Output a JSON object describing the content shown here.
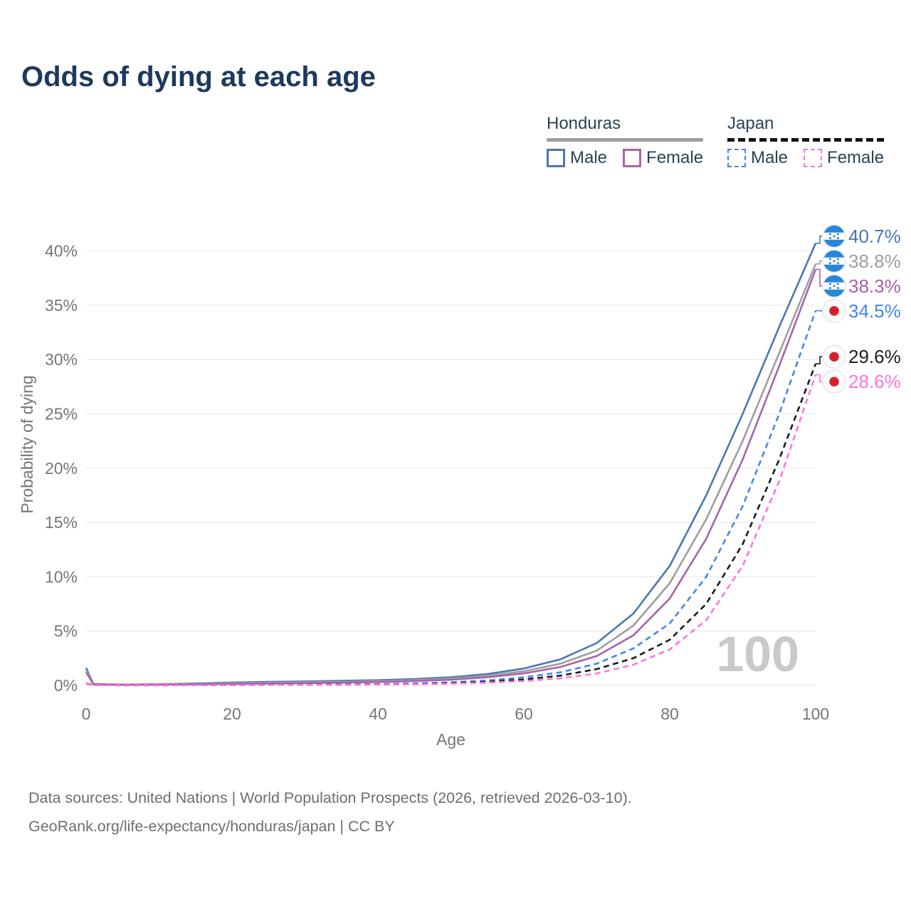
{
  "title": "Odds of dying at each age",
  "watermark": "100",
  "legend": {
    "groups": [
      {
        "country": "Honduras",
        "line_style": "solid",
        "underline_color": "#9e9e9e",
        "items": [
          {
            "label": "Male",
            "color": "#4a77b4",
            "dashed": false
          },
          {
            "label": "Female",
            "color": "#a963a9",
            "dashed": false
          }
        ]
      },
      {
        "country": "Japan",
        "line_style": "dashed",
        "underline_color": "#111111",
        "items": [
          {
            "label": "Male",
            "color": "#4287ee",
            "dashed": true
          },
          {
            "label": "Female",
            "color": "#ff74dc",
            "dashed": true
          }
        ]
      }
    ]
  },
  "colors": {
    "title": "#1d3a5c",
    "legend_text": "#2b4257",
    "axis_text": "#767676",
    "grid": "#ebebeb",
    "watermark": "#c9c9c9",
    "footer": "#6e6e6e",
    "icon_bg": "#ececec",
    "honduras_flag_blue": "#2787d8",
    "japan_flag_red": "#d7202e"
  },
  "chart_data": {
    "type": "line",
    "title": "Odds of dying at each age",
    "xlabel": "Age",
    "ylabel": "Probability of dying",
    "xlim": [
      0,
      100
    ],
    "ylim": [
      0,
      42
    ],
    "x_ticks": [
      0,
      20,
      40,
      60,
      80,
      100
    ],
    "y_ticks": [
      0,
      5,
      10,
      15,
      20,
      25,
      30,
      35,
      40
    ],
    "y_tick_suffix": "%",
    "grid": true,
    "legend_position": "top-right",
    "x": [
      0,
      1,
      5,
      10,
      15,
      20,
      25,
      30,
      35,
      40,
      45,
      50,
      55,
      60,
      65,
      70,
      75,
      80,
      85,
      90,
      95,
      100
    ],
    "series": [
      {
        "name": "Honduras Male",
        "color": "#4a77b4",
        "dashed": false,
        "flag": "honduras",
        "end_label": "40.7%",
        "end_value": 40.7,
        "values": [
          1.6,
          0.12,
          0.08,
          0.1,
          0.18,
          0.27,
          0.32,
          0.37,
          0.42,
          0.48,
          0.58,
          0.75,
          1.05,
          1.55,
          2.4,
          3.9,
          6.6,
          11.0,
          17.5,
          25.0,
          33.0,
          40.7
        ]
      },
      {
        "name": "Honduras Both sexes",
        "color": "#9e9e9e",
        "dashed": false,
        "flag": "honduras",
        "end_label": "38.8%",
        "end_value": 38.8,
        "values": [
          1.4,
          0.1,
          0.07,
          0.09,
          0.14,
          0.2,
          0.24,
          0.28,
          0.33,
          0.39,
          0.48,
          0.63,
          0.9,
          1.3,
          2.0,
          3.2,
          5.5,
          9.4,
          15.3,
          22.5,
          30.6,
          38.8
        ]
      },
      {
        "name": "Honduras Female",
        "color": "#a963a9",
        "dashed": false,
        "flag": "honduras",
        "end_label": "38.3%",
        "end_value": 38.3,
        "values": [
          1.2,
          0.09,
          0.06,
          0.08,
          0.1,
          0.13,
          0.16,
          0.2,
          0.25,
          0.31,
          0.4,
          0.52,
          0.75,
          1.1,
          1.7,
          2.7,
          4.6,
          8.0,
          13.5,
          20.8,
          29.4,
          38.3
        ]
      },
      {
        "name": "Japan Male",
        "color": "#4287ee",
        "dashed": true,
        "flag": "japan",
        "end_label": "34.5%",
        "end_value": 34.5,
        "values": [
          0.18,
          0.03,
          0.01,
          0.01,
          0.03,
          0.05,
          0.06,
          0.07,
          0.09,
          0.12,
          0.18,
          0.28,
          0.45,
          0.75,
          1.2,
          2.0,
          3.4,
          5.7,
          10.0,
          16.5,
          25.0,
          34.5
        ]
      },
      {
        "name": "Japan Both sexes",
        "color": "#1c1c1c",
        "dashed": true,
        "flag": "japan",
        "end_label": "29.6%",
        "end_value": 29.6,
        "values": [
          0.16,
          0.02,
          0.01,
          0.01,
          0.02,
          0.04,
          0.05,
          0.06,
          0.07,
          0.1,
          0.14,
          0.21,
          0.33,
          0.55,
          0.9,
          1.5,
          2.5,
          4.2,
          7.5,
          13.0,
          20.8,
          29.6
        ]
      },
      {
        "name": "Japan Female",
        "color": "#ff74dc",
        "dashed": true,
        "flag": "japan",
        "end_label": "28.6%",
        "end_value": 28.6,
        "values": [
          0.14,
          0.02,
          0.01,
          0.01,
          0.02,
          0.03,
          0.04,
          0.05,
          0.06,
          0.08,
          0.11,
          0.16,
          0.25,
          0.4,
          0.65,
          1.1,
          1.9,
          3.3,
          6.0,
          11.0,
          18.8,
          28.6
        ]
      }
    ]
  },
  "footer": {
    "line1": "Data sources: United Nations | World Population Prospects (2026, retrieved 2026-03-10).",
    "line2": "GeoRank.org/life-expectancy/honduras/japan | CC BY"
  }
}
